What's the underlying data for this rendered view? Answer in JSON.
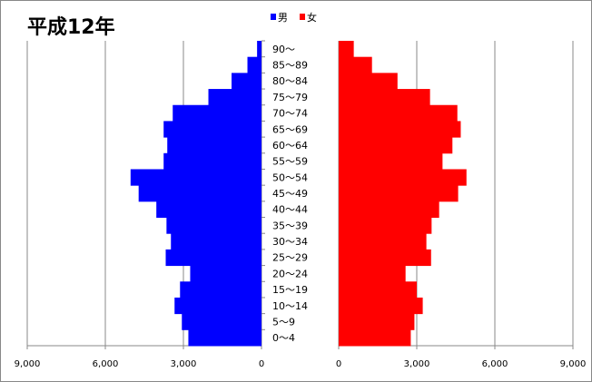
{
  "chart_data": {
    "type": "bar",
    "orientation": "horizontal-population-pyramid",
    "title": "平成12年",
    "categories": [
      "0～4",
      "5～9",
      "10～14",
      "15～19",
      "20～24",
      "25～29",
      "30～34",
      "35～39",
      "40～44",
      "45～49",
      "50～54",
      "55～59",
      "60～64",
      "65～69",
      "70～74",
      "75～79",
      "80～84",
      "85～89",
      "90～"
    ],
    "series": [
      {
        "name": "男",
        "color": "#0000ff",
        "values": [
          2810,
          3060,
          3340,
          3130,
          2740,
          3680,
          3480,
          3650,
          4040,
          4720,
          5030,
          3760,
          3620,
          3760,
          3410,
          2040,
          1150,
          540,
          170
        ]
      },
      {
        "name": "女",
        "color": "#ff0000",
        "values": [
          2770,
          2910,
          3230,
          3000,
          2570,
          3550,
          3370,
          3570,
          3860,
          4590,
          4910,
          3990,
          4370,
          4690,
          4560,
          3510,
          2260,
          1280,
          580
        ]
      }
    ],
    "xlim": [
      0,
      9000
    ],
    "x_ticks": [
      "9,000",
      "6,000",
      "3,000",
      "0"
    ],
    "x_ticks_right": [
      "0",
      "3,000",
      "6,000",
      "9,000"
    ],
    "x_tick_values": [
      0,
      3000,
      6000,
      9000
    ],
    "grid": true,
    "legend_position": "top-center"
  }
}
